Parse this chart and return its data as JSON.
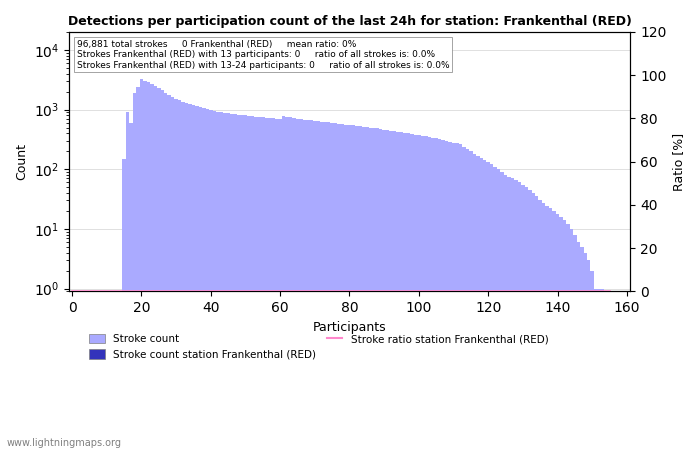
{
  "title": "Detections per participation count of the last 24h for station: Frankenthal (RED)",
  "annotation_lines": [
    "96,881 total strokes     0 Frankenthal (RED)     mean ratio: 0%",
    "Strokes Frankenthal (RED) with 13 participants: 0     ratio of all strokes is: 0.0%",
    "Strokes Frankenthal (RED) with 13-24 participants: 0     ratio of all strokes is: 0.0%"
  ],
  "xlabel": "Participants",
  "ylabel_left": "Count",
  "ylabel_right": "Ratio [%]",
  "bar_color_light": "#aaaaff",
  "bar_color_dark": "#3333bb",
  "line_color": "#ff88cc",
  "watermark": "www.lightningmaps.org",
  "ylim_right": [
    0,
    120
  ],
  "legend_labels": [
    "Stroke count",
    "Stroke count station Frankenthal (RED)",
    "Stroke ratio station Frankenthal (RED)"
  ],
  "stroke_counts": [
    0,
    0,
    0,
    0,
    0,
    0,
    0,
    0,
    0,
    0,
    0,
    0,
    0,
    0,
    0,
    150,
    900,
    600,
    1900,
    2400,
    3200,
    3000,
    2900,
    2700,
    2500,
    2300,
    2100,
    1900,
    1750,
    1600,
    1500,
    1450,
    1350,
    1300,
    1250,
    1200,
    1150,
    1100,
    1050,
    1010,
    980,
    950,
    920,
    900,
    880,
    870,
    850,
    840,
    820,
    810,
    800,
    790,
    780,
    760,
    750,
    740,
    730,
    720,
    710,
    700,
    690,
    780,
    760,
    750,
    730,
    700,
    690,
    680,
    670,
    660,
    650,
    640,
    630,
    620,
    610,
    600,
    590,
    580,
    570,
    560,
    560,
    550,
    540,
    530,
    520,
    510,
    500,
    490,
    490,
    480,
    460,
    450,
    440,
    430,
    420,
    420,
    410,
    400,
    390,
    380,
    370,
    360,
    360,
    350,
    340,
    330,
    320,
    310,
    300,
    290,
    280,
    270,
    260,
    240,
    220,
    200,
    180,
    165,
    155,
    145,
    130,
    120,
    110,
    100,
    90,
    80,
    75,
    70,
    65,
    60,
    55,
    50,
    45,
    40,
    35,
    30,
    27,
    24,
    22,
    20,
    18,
    16,
    14,
    12,
    10,
    8,
    6,
    5,
    4,
    3,
    2,
    1,
    1,
    1,
    0,
    0
  ],
  "station_counts": [
    0,
    0,
    0,
    0,
    0,
    0,
    0,
    0,
    0,
    0,
    0,
    0,
    0,
    0,
    0,
    0,
    0,
    0,
    0,
    0,
    0,
    0,
    0,
    0,
    0,
    0,
    0,
    0,
    0,
    0,
    0,
    0,
    0,
    0,
    0,
    0,
    0,
    0,
    0,
    0,
    0,
    0,
    0,
    0,
    0,
    0,
    0,
    0,
    0,
    0,
    0,
    0,
    0,
    0,
    0,
    0,
    0,
    0,
    0,
    0,
    0,
    0,
    0,
    0,
    0,
    0,
    0,
    0,
    0,
    0,
    0,
    0,
    0,
    0,
    0,
    0,
    0,
    0,
    0,
    0,
    0,
    0,
    0,
    0,
    0,
    0,
    0,
    0,
    0,
    0,
    0,
    0,
    0,
    0,
    0,
    0,
    0,
    0,
    0,
    0,
    0,
    0,
    0,
    0,
    0,
    0,
    0,
    0,
    0,
    0,
    0,
    0,
    0,
    0,
    0,
    0,
    0,
    0,
    0,
    0,
    0,
    0,
    0,
    0,
    0,
    0,
    0,
    0,
    0,
    0,
    0,
    0,
    0,
    0,
    0,
    0,
    0,
    0,
    0,
    0,
    0,
    0,
    0,
    0,
    0,
    0,
    0,
    0,
    0,
    0,
    0,
    0,
    0,
    0,
    0,
    0
  ],
  "ratio_values": [
    0,
    0,
    0,
    0,
    0,
    0,
    0,
    0,
    0,
    0,
    0,
    0,
    0,
    0,
    0,
    0,
    0,
    0,
    0,
    0,
    0,
    0,
    0,
    0,
    0,
    0,
    0,
    0,
    0,
    0,
    0,
    0,
    0,
    0,
    0,
    0,
    0,
    0,
    0,
    0,
    0,
    0,
    0,
    0,
    0,
    0,
    0,
    0,
    0,
    0,
    0,
    0,
    0,
    0,
    0,
    0,
    0,
    0,
    0,
    0,
    0,
    0,
    0,
    0,
    0,
    0,
    0,
    0,
    0,
    0,
    0,
    0,
    0,
    0,
    0,
    0,
    0,
    0,
    0,
    0,
    0,
    0,
    0,
    0,
    0,
    0,
    0,
    0,
    0,
    0,
    0,
    0,
    0,
    0,
    0,
    0,
    0,
    0,
    0,
    0,
    0,
    0,
    0,
    0,
    0,
    0,
    0,
    0,
    0,
    0,
    0,
    0,
    0,
    0,
    0,
    0,
    0,
    0,
    0,
    0,
    0,
    0,
    0,
    0,
    0,
    0,
    0,
    0,
    0,
    0,
    0,
    0,
    0,
    0,
    0,
    0,
    0,
    0,
    0,
    0,
    0,
    0,
    0,
    0,
    0,
    0,
    0,
    0,
    0,
    0,
    0,
    0,
    0,
    0,
    0,
    0
  ]
}
